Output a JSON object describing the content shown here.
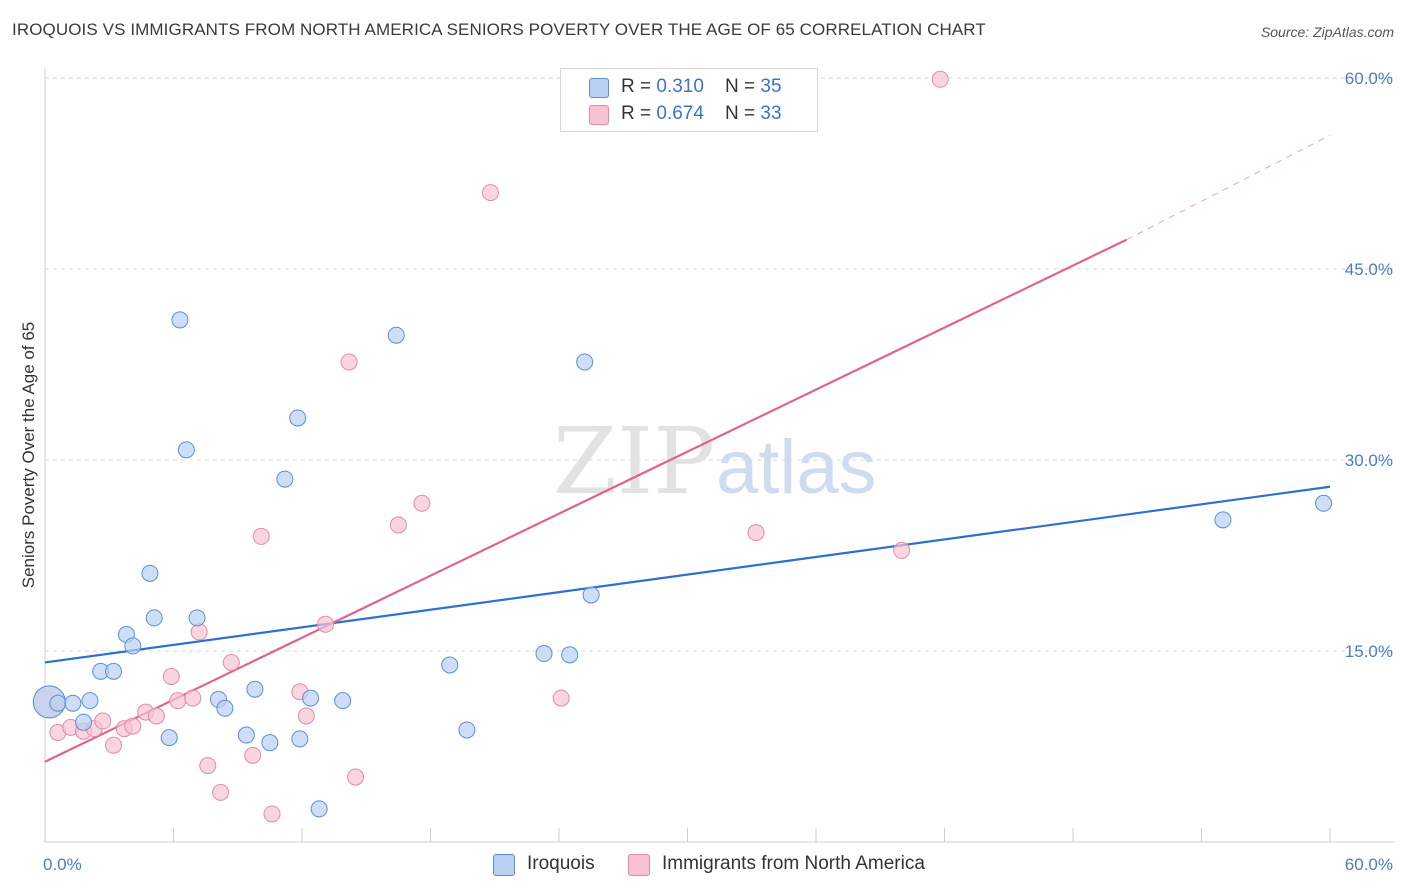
{
  "title": "IROQUOIS VS IMMIGRANTS FROM NORTH AMERICA SENIORS POVERTY OVER THE AGE OF 65 CORRELATION CHART",
  "source": "Source: ZipAtlas.com",
  "watermark": {
    "zip": "ZIP",
    "atlas": "atlas"
  },
  "legend": {
    "rows": [
      {
        "r_label": "R = ",
        "r_value": "0.310",
        "n_label": "N = ",
        "n_value": "35"
      },
      {
        "r_label": "R = ",
        "r_value": "0.674",
        "n_label": "N = ",
        "n_value": "33"
      }
    ]
  },
  "bottom_legend": [
    "Iroquois",
    "Immigrants from North America"
  ],
  "colors": {
    "blue_fill": "#b8d0f2",
    "blue_stroke": "#5b8fd6",
    "blue_line": "#2f6fcf",
    "pink_fill": "#f7c3d3",
    "pink_stroke": "#e48aa8",
    "pink_line": "#e0628e",
    "grid": "#d9d9d9",
    "tick_text": "#4a7cc9"
  },
  "chart_data": {
    "type": "scatter",
    "title": "IROQUOIS VS IMMIGRANTS FROM NORTH AMERICA SENIORS POVERTY OVER THE AGE OF 65 CORRELATION CHART",
    "xlabel": "",
    "ylabel": "Seniors Poverty Over the Age of 65",
    "xlim": [
      0,
      60
    ],
    "ylim": [
      0,
      60
    ],
    "x_tick_labels": [
      "0.0%",
      "60.0%"
    ],
    "y_tick_labels": [
      "15.0%",
      "30.0%",
      "45.0%",
      "60.0%"
    ],
    "y_ticks": [
      15,
      30,
      45,
      60
    ],
    "grid": true,
    "legend_placement": "top-center",
    "series": [
      {
        "name": "Iroquois",
        "color": "#5b8fd6",
        "points": [
          [
            0.2,
            11.0
          ],
          [
            0.6,
            10.9
          ],
          [
            1.3,
            10.9
          ],
          [
            1.8,
            9.4
          ],
          [
            2.1,
            11.1
          ],
          [
            2.6,
            13.4
          ],
          [
            3.2,
            13.4
          ],
          [
            3.8,
            16.3
          ],
          [
            4.1,
            15.4
          ],
          [
            4.9,
            21.1
          ],
          [
            5.1,
            17.6
          ],
          [
            5.8,
            8.2
          ],
          [
            6.3,
            41.0
          ],
          [
            6.6,
            30.8
          ],
          [
            7.1,
            17.6
          ],
          [
            8.1,
            11.2
          ],
          [
            8.4,
            10.5
          ],
          [
            9.4,
            8.4
          ],
          [
            9.8,
            12.0
          ],
          [
            10.5,
            7.8
          ],
          [
            11.2,
            28.5
          ],
          [
            11.8,
            33.3
          ],
          [
            11.9,
            8.1
          ],
          [
            12.4,
            11.3
          ],
          [
            12.8,
            2.6
          ],
          [
            13.9,
            11.1
          ],
          [
            16.4,
            39.8
          ],
          [
            18.9,
            13.9
          ],
          [
            19.7,
            8.8
          ],
          [
            23.3,
            14.8
          ],
          [
            24.5,
            14.7
          ],
          [
            25.2,
            37.7
          ],
          [
            25.5,
            19.4
          ],
          [
            55.0,
            25.3
          ],
          [
            59.7,
            26.6
          ]
        ]
      },
      {
        "name": "Immigrants from North America",
        "color": "#e48aa8",
        "points": [
          [
            0.2,
            11.0
          ],
          [
            0.6,
            8.6
          ],
          [
            1.2,
            9.0
          ],
          [
            1.8,
            8.7
          ],
          [
            2.3,
            8.9
          ],
          [
            2.7,
            9.5
          ],
          [
            3.2,
            7.6
          ],
          [
            3.7,
            8.9
          ],
          [
            4.1,
            9.1
          ],
          [
            4.7,
            10.2
          ],
          [
            5.2,
            9.9
          ],
          [
            5.9,
            13.0
          ],
          [
            6.2,
            11.1
          ],
          [
            6.9,
            11.3
          ],
          [
            7.2,
            16.5
          ],
          [
            7.6,
            6.0
          ],
          [
            8.2,
            3.9
          ],
          [
            8.7,
            14.1
          ],
          [
            9.7,
            6.8
          ],
          [
            10.1,
            24.0
          ],
          [
            10.6,
            2.2
          ],
          [
            11.9,
            11.8
          ],
          [
            12.2,
            9.9
          ],
          [
            13.1,
            17.1
          ],
          [
            14.2,
            37.7
          ],
          [
            14.5,
            5.1
          ],
          [
            16.5,
            24.9
          ],
          [
            17.6,
            26.6
          ],
          [
            20.8,
            51.0
          ],
          [
            24.1,
            11.3
          ],
          [
            33.2,
            24.3
          ],
          [
            40.0,
            22.9
          ],
          [
            41.8,
            59.9
          ]
        ]
      }
    ],
    "trendlines": [
      {
        "name": "Iroquois",
        "x": [
          0,
          60
        ],
        "y": [
          14.1,
          27.9
        ],
        "style": "solid"
      },
      {
        "name": "Immigrants from North America",
        "x": [
          0,
          50.5
        ],
        "y": [
          6.3,
          47.3
        ],
        "style": "solid"
      },
      {
        "name": "Immigrants from North America",
        "x": [
          50.5,
          60
        ],
        "y": [
          47.3,
          55.5
        ],
        "style": "dashed"
      }
    ]
  }
}
